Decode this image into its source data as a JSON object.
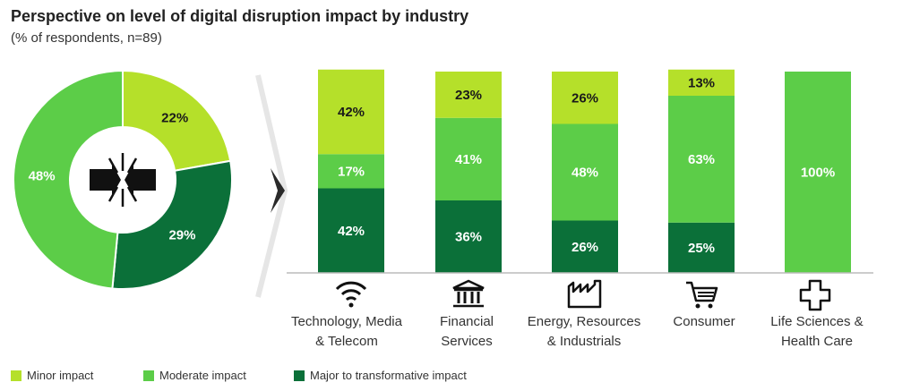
{
  "title": "Perspective on level of digital disruption impact by industry",
  "subtitle": "(% of respondents, n=89)",
  "colors": {
    "minor": "#b5e02a",
    "moderate": "#5ccd48",
    "major": "#0b7039"
  },
  "legend": [
    {
      "key": "minor",
      "label": "Minor impact"
    },
    {
      "key": "moderate",
      "label": "Moderate impact"
    },
    {
      "key": "major",
      "label": "Major to transformative impact"
    }
  ],
  "industries": [
    {
      "label_line1": "Technology, Media",
      "label_line2": "& Telecom",
      "icon": "wifi-icon"
    },
    {
      "label_line1": "Financial",
      "label_line2": "Services",
      "icon": "bank-icon"
    },
    {
      "label_line1": "Energy, Resources",
      "label_line2": "& Industrials",
      "icon": "factory-icon"
    },
    {
      "label_line1": "Consumer",
      "label_line2": "",
      "icon": "shopping-cart-icon"
    },
    {
      "label_line1": "Life Sciences &",
      "label_line2": "Health Care",
      "icon": "medical-cross-icon"
    }
  ],
  "chart_data": [
    {
      "type": "pie",
      "style": "donut",
      "categories": [
        "Minor impact",
        "Moderate impact",
        "Major to transformative impact"
      ],
      "values": [
        22,
        48,
        29
      ],
      "labels": [
        "22%",
        "48%",
        "29%"
      ],
      "center_icon": "disruption-impact-icon"
    },
    {
      "type": "bar",
      "stacked": true,
      "categories": [
        "Technology, Media & Telecom",
        "Financial Services",
        "Energy, Resources & Industrials",
        "Consumer",
        "Life Sciences & Health Care"
      ],
      "series": [
        {
          "name": "Major to transformative impact",
          "key": "major",
          "values": [
            42,
            36,
            26,
            25,
            0
          ]
        },
        {
          "name": "Moderate impact",
          "key": "moderate",
          "values": [
            17,
            41,
            48,
            63,
            100
          ]
        },
        {
          "name": "Minor impact",
          "key": "minor",
          "values": [
            42,
            23,
            26,
            13,
            0
          ]
        }
      ],
      "ylim": [
        0,
        100
      ],
      "grid": false,
      "legend": "bottom-left"
    }
  ]
}
